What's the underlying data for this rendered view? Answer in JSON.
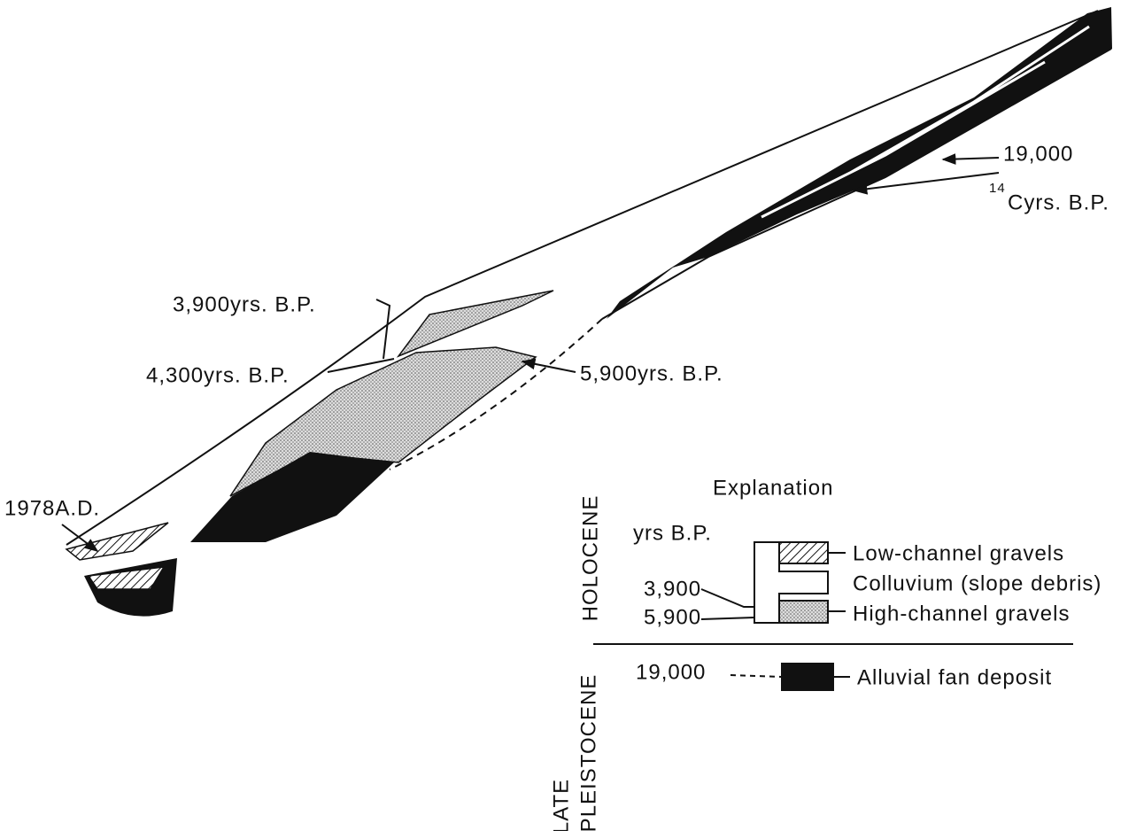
{
  "section": {
    "labels": {
      "radiocarbon": {
        "value": "19,000",
        "superscript": "14",
        "unit": "Cyrs. B.P."
      },
      "age_3900": "3,900yrs. B.P.",
      "age_4300": "4,300yrs. B.P.",
      "age_5900": "5,900yrs. B.P.",
      "historic": "1978A.D."
    }
  },
  "legend": {
    "title": "Explanation",
    "periods": {
      "holocene": "HOLOCENE",
      "late": "LATE",
      "pleistocene": "PLEISTOCENE"
    },
    "age_header": "yrs B.P.",
    "ages": [
      "3,900",
      "5,900",
      "19,000"
    ],
    "units": [
      "Low-channel gravels",
      "Colluvium (slope debris)",
      "High-channel gravels",
      "Alluvial fan deposit"
    ]
  }
}
